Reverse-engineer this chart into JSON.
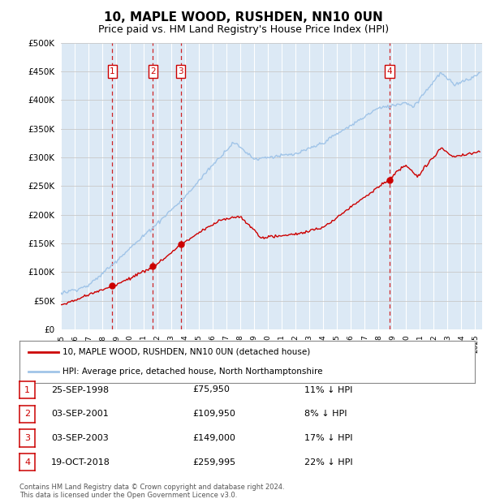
{
  "title": "10, MAPLE WOOD, RUSHDEN, NN10 0UN",
  "subtitle": "Price paid vs. HM Land Registry's House Price Index (HPI)",
  "title_fontsize": 11,
  "subtitle_fontsize": 9,
  "background_color": "#dce9f5",
  "plot_bg_color": "#dce9f5",
  "legend_label_red": "10, MAPLE WOOD, RUSHDEN, NN10 0UN (detached house)",
  "legend_label_blue": "HPI: Average price, detached house, North Northamptonshire",
  "footer": "Contains HM Land Registry data © Crown copyright and database right 2024.\nThis data is licensed under the Open Government Licence v3.0.",
  "transactions": [
    {
      "num": 1,
      "date": "25-SEP-1998",
      "price": 75950,
      "pct": "11%",
      "x_year": 1998.73
    },
    {
      "num": 2,
      "date": "03-SEP-2001",
      "price": 109950,
      "pct": "8%",
      "x_year": 2001.67
    },
    {
      "num": 3,
      "date": "03-SEP-2003",
      "price": 149000,
      "pct": "17%",
      "x_year": 2003.67
    },
    {
      "num": 4,
      "date": "19-OCT-2018",
      "price": 259995,
      "pct": "22%",
      "x_year": 2018.8
    }
  ],
  "ylim": [
    0,
    500000
  ],
  "yticks": [
    0,
    50000,
    100000,
    150000,
    200000,
    250000,
    300000,
    350000,
    400000,
    450000,
    500000
  ],
  "xlim_start": 1995.0,
  "xlim_end": 2025.5,
  "xticks": [
    1995,
    1996,
    1997,
    1998,
    1999,
    2000,
    2001,
    2002,
    2003,
    2004,
    2005,
    2006,
    2007,
    2008,
    2009,
    2010,
    2011,
    2012,
    2013,
    2014,
    2015,
    2016,
    2017,
    2018,
    2019,
    2020,
    2021,
    2022,
    2023,
    2024,
    2025
  ],
  "hpi_color": "#a0c4e8",
  "red_color": "#cc0000",
  "grid_color_h": "#c8c8c8",
  "grid_color_v": "#c8c8c8"
}
